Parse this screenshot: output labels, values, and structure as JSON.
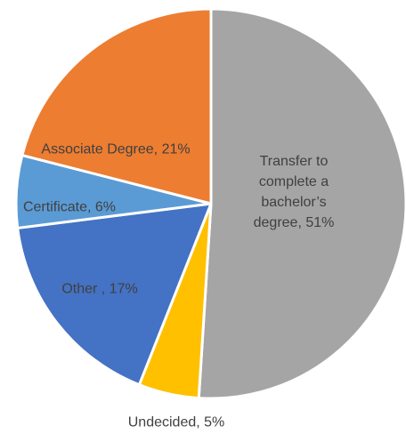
{
  "chart_data": {
    "type": "pie",
    "labels": [
      "Transfer to complete a bachelor’s degree, 51%",
      "Undecided, 5%",
      "Other , 17%",
      "Certificate, 6%",
      "Associate Degree, 21%"
    ],
    "values": [
      51,
      5,
      17,
      6,
      21
    ],
    "colors": [
      "#a5a5a5",
      "#ffc000",
      "#4472c4",
      "#5b9bd5",
      "#ed7d31"
    ]
  }
}
